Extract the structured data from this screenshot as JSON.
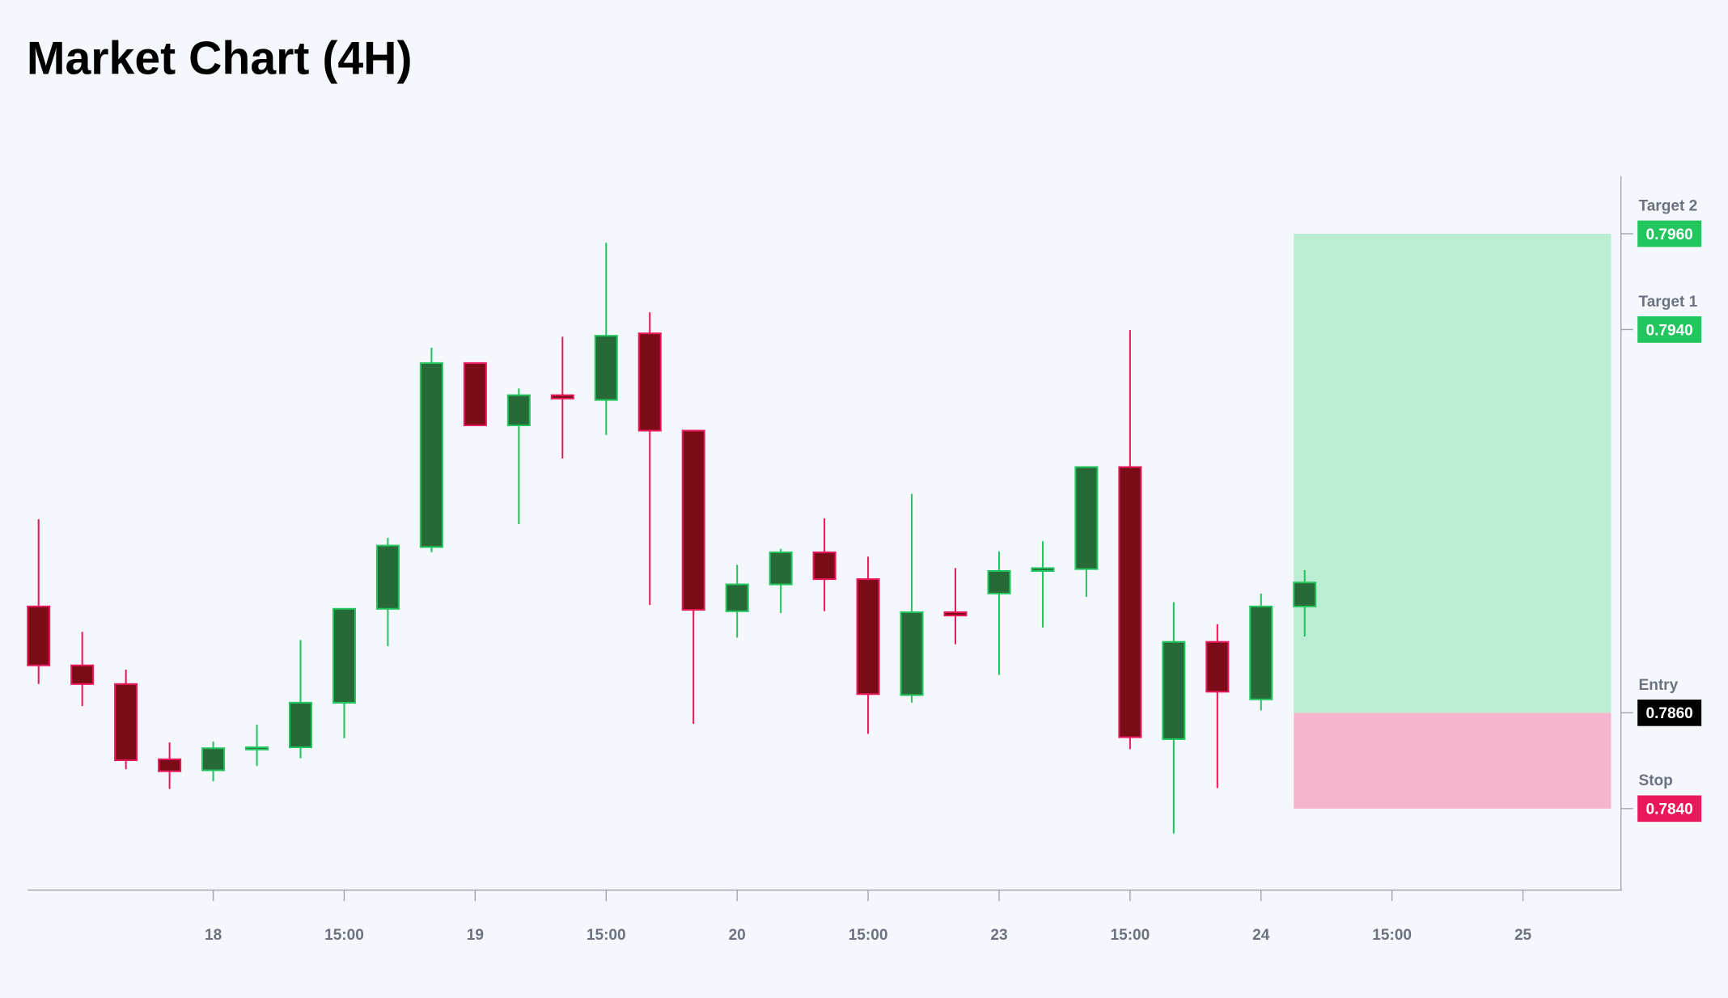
{
  "chart_data": {
    "type": "candlestick",
    "title": "Market Chart (4H)",
    "x": [
      0,
      1,
      2,
      3,
      4,
      5,
      6,
      7,
      8,
      9,
      10,
      11,
      12,
      13,
      14,
      15,
      16,
      17,
      18,
      19,
      20,
      21,
      22,
      23,
      24,
      25,
      26,
      27,
      28,
      29
    ],
    "open": [
      0.78822,
      0.78699,
      0.7866,
      0.78503,
      0.7848,
      0.78525,
      0.78528,
      0.78621,
      0.78817,
      0.78946,
      0.7933,
      0.792,
      0.79263,
      0.79253,
      0.79392,
      0.79189,
      0.78812,
      0.78868,
      0.78935,
      0.78879,
      0.78637,
      0.7881,
      0.78849,
      0.78896,
      0.789,
      0.79113,
      0.78545,
      0.78748,
      0.78628,
      0.78822
    ],
    "high": [
      0.79004,
      0.78769,
      0.7869,
      0.78538,
      0.7854,
      0.78575,
      0.78752,
      0.78817,
      0.78965,
      0.79362,
      0.7933,
      0.79277,
      0.79385,
      0.79581,
      0.79436,
      0.79189,
      0.78909,
      0.78942,
      0.79006,
      0.78926,
      0.79057,
      0.78902,
      0.78937,
      0.78958,
      0.79113,
      0.79399,
      0.78831,
      0.78785,
      0.78849,
      0.78898
    ],
    "low": [
      0.7866,
      0.78614,
      0.78482,
      0.78441,
      0.78457,
      0.78489,
      0.78505,
      0.78547,
      0.78739,
      0.78935,
      0.792,
      0.78994,
      0.79131,
      0.7918,
      0.78825,
      0.78577,
      0.78757,
      0.78808,
      0.78812,
      0.78556,
      0.78621,
      0.78743,
      0.78679,
      0.78778,
      0.78842,
      0.78524,
      0.78348,
      0.78443,
      0.78605,
      0.78759
    ],
    "close": [
      0.78699,
      0.7866,
      0.78501,
      0.78478,
      0.78526,
      0.78528,
      0.78621,
      0.78817,
      0.78949,
      0.7933,
      0.792,
      0.79263,
      0.79256,
      0.79387,
      0.79189,
      0.78815,
      0.78868,
      0.78935,
      0.78879,
      0.78639,
      0.7881,
      0.78803,
      0.78896,
      0.78902,
      0.79113,
      0.78549,
      0.78748,
      0.78644,
      0.78822,
      0.78872
    ],
    "up_color": "#276a37",
    "up_border": "#22c55e",
    "down_color": "#7a0c17",
    "down_border": "#e8185a",
    "xlim": [
      -0.25,
      36.27
    ],
    "xticks": [
      {
        "value": 4,
        "label": "18"
      },
      {
        "value": 7,
        "label": "15:00"
      },
      {
        "value": 10,
        "label": "19"
      },
      {
        "value": 13,
        "label": "15:00"
      },
      {
        "value": 16,
        "label": "20"
      },
      {
        "value": 19,
        "label": "15:00"
      },
      {
        "value": 22,
        "label": "23"
      },
      {
        "value": 25,
        "label": "15:00"
      },
      {
        "value": 28,
        "label": "24"
      },
      {
        "value": 31,
        "label": "15:00"
      },
      {
        "value": 34,
        "label": "25"
      }
    ],
    "ylim": [
      0.7823,
      0.7972
    ],
    "levels": [
      {
        "name": "Target 2",
        "value": 0.796,
        "value_label": "0.7960",
        "color": "#22c55e"
      },
      {
        "name": "Target 1",
        "value": 0.794,
        "value_label": "0.7940",
        "color": "#22c55e"
      },
      {
        "name": "Entry",
        "value": 0.786,
        "value_label": "0.7860",
        "color": "#000000"
      },
      {
        "name": "Stop",
        "value": 0.784,
        "value_label": "0.7840",
        "color": "#e8185a"
      }
    ],
    "profit_color": "#bbedd3",
    "loss_color": "#f5b5cc"
  }
}
